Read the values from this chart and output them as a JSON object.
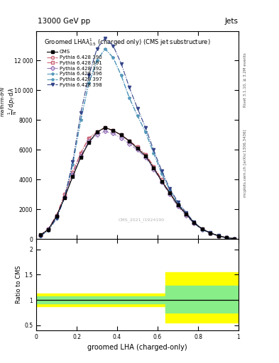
{
  "title_top": "13000 GeV pp",
  "title_right": "Jets",
  "xlabel": "groomed LHA (charged-only)",
  "ylabel_ratio": "Ratio to CMS",
  "right_label_top": "Rivet 3.1.10, ≥ 3.2M events",
  "right_label_bottom": "mcplots.cern.ch [arXiv:1306.3436]",
  "watermark": "CMS_2021_I1924190",
  "x_bins": [
    0.0,
    0.04,
    0.08,
    0.12,
    0.16,
    0.2,
    0.24,
    0.28,
    0.32,
    0.36,
    0.4,
    0.44,
    0.48,
    0.52,
    0.56,
    0.6,
    0.64,
    0.68,
    0.72,
    0.76,
    0.8,
    0.84,
    0.88,
    0.92,
    0.96,
    1.0
  ],
  "cms_data": [
    0.28,
    0.65,
    1.55,
    2.8,
    4.2,
    5.5,
    6.5,
    7.2,
    7.5,
    7.3,
    7.0,
    6.6,
    6.1,
    5.6,
    4.8,
    3.9,
    3.1,
    2.3,
    1.7,
    1.1,
    0.68,
    0.42,
    0.23,
    0.1,
    0.035
  ],
  "series": [
    {
      "label": "Pythia 6.428 390",
      "color": "#cc6677",
      "marker": "o",
      "linestyle": "-.",
      "filled": false,
      "values": [
        0.25,
        0.7,
        1.6,
        3.0,
        4.5,
        5.8,
        6.8,
        7.2,
        7.5,
        7.3,
        7.0,
        6.6,
        6.2,
        5.7,
        4.9,
        4.0,
        3.1,
        2.3,
        1.7,
        1.1,
        0.68,
        0.42,
        0.23,
        0.1,
        0.035
      ]
    },
    {
      "label": "Pythia 6.428 391",
      "color": "#cc6677",
      "marker": "s",
      "linestyle": "-.",
      "filled": false,
      "values": [
        0.25,
        0.7,
        1.6,
        3.0,
        4.5,
        5.8,
        6.8,
        7.2,
        7.5,
        7.3,
        7.0,
        6.6,
        6.2,
        5.7,
        4.9,
        4.0,
        3.1,
        2.3,
        1.7,
        1.1,
        0.68,
        0.42,
        0.23,
        0.1,
        0.035
      ]
    },
    {
      "label": "Pythia 6.428 392",
      "color": "#9977bb",
      "marker": "D",
      "linestyle": "-.",
      "filled": false,
      "values": [
        0.24,
        0.68,
        1.55,
        2.85,
        4.35,
        5.6,
        6.6,
        7.0,
        7.25,
        7.1,
        6.8,
        6.4,
        6.0,
        5.5,
        4.7,
        3.85,
        3.0,
        2.2,
        1.6,
        1.05,
        0.65,
        0.4,
        0.22,
        0.095,
        0.033
      ]
    },
    {
      "label": "Pythia 6.428 396",
      "color": "#5599bb",
      "marker": "*",
      "linestyle": "-.",
      "filled": false,
      "values": [
        0.22,
        0.6,
        1.4,
        2.8,
        5.0,
        8.0,
        10.5,
        12.0,
        12.8,
        12.2,
        11.0,
        9.5,
        8.3,
        7.2,
        5.8,
        4.4,
        3.3,
        2.4,
        1.7,
        1.1,
        0.65,
        0.4,
        0.22,
        0.09,
        0.03
      ]
    },
    {
      "label": "Pythia 6.428 397",
      "color": "#5599bb",
      "marker": "*",
      "linestyle": "-.",
      "filled": false,
      "values": [
        0.22,
        0.6,
        1.4,
        2.8,
        5.0,
        8.0,
        10.5,
        12.0,
        12.8,
        12.2,
        11.0,
        9.5,
        8.3,
        7.2,
        5.8,
        4.4,
        3.3,
        2.4,
        1.7,
        1.1,
        0.65,
        0.4,
        0.22,
        0.09,
        0.03
      ]
    },
    {
      "label": "Pythia 6.428 398",
      "color": "#334488",
      "marker": "v",
      "linestyle": "-.",
      "filled": true,
      "values": [
        0.22,
        0.6,
        1.4,
        2.8,
        5.2,
        8.5,
        11.0,
        12.8,
        13.5,
        13.0,
        11.8,
        10.2,
        8.8,
        7.5,
        6.0,
        4.6,
        3.4,
        2.5,
        1.8,
        1.15,
        0.7,
        0.43,
        0.24,
        0.1,
        0.032
      ]
    }
  ],
  "ratio_bands": [
    {
      "xstart": 0.0,
      "xend": 0.64,
      "yellow_lo": 0.88,
      "yellow_hi": 1.12,
      "green_lo": 0.93,
      "green_hi": 1.07
    },
    {
      "xstart": 0.64,
      "xend": 1.0,
      "yellow_lo": 0.55,
      "yellow_hi": 1.55,
      "green_lo": 0.75,
      "green_hi": 1.28
    }
  ],
  "ylim_ratio": [
    0.4,
    2.2
  ],
  "yticks_ratio": [
    0.5,
    1.0,
    1.5,
    2.0
  ],
  "ytick_labels_ratio": [
    "0.5",
    "1",
    "1.5",
    "2"
  ],
  "background_color": "#ffffff",
  "scale": 1000.0,
  "ylim_main_raw": [
    0,
    14.0
  ],
  "yticks_main_raw": [
    0,
    2,
    4,
    6,
    8,
    10,
    12
  ],
  "ytick_labels_main": [
    "0",
    "2000",
    "4000",
    "6000",
    "8000",
    "10 000",
    "12 000"
  ]
}
